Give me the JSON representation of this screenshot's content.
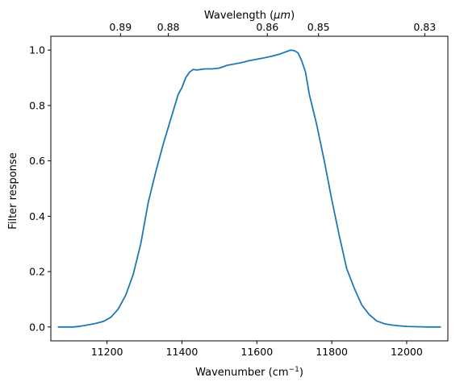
{
  "chart_data": {
    "type": "line",
    "xlabel": "Wavenumber (cm",
    "xlabel_sup": "−1",
    "xlabel_close": ")",
    "ylabel": "Filter response",
    "top_xlabel_prefix": "Wavelength (",
    "top_xlabel_unit": "μm",
    "top_xlabel_suffix": ")",
    "xlim": [
      11050,
      12110
    ],
    "ylim": [
      -0.05,
      1.05
    ],
    "x_ticks": [
      {
        "value": 11200,
        "label": "11200"
      },
      {
        "value": 11400,
        "label": "11400"
      },
      {
        "value": 11600,
        "label": "11600"
      },
      {
        "value": 11800,
        "label": "11800"
      },
      {
        "value": 12000,
        "label": "12000"
      }
    ],
    "y_ticks": [
      {
        "value": 0.0,
        "label": "0.0"
      },
      {
        "value": 0.2,
        "label": "0.2"
      },
      {
        "value": 0.4,
        "label": "0.4"
      },
      {
        "value": 0.6,
        "label": "0.6"
      },
      {
        "value": 0.8,
        "label": "0.8"
      },
      {
        "value": 1.0,
        "label": "1.0"
      }
    ],
    "top_ticks": [
      {
        "value": 0.89,
        "label": "0.89"
      },
      {
        "value": 0.88,
        "label": "0.88"
      },
      {
        "value": 0.86,
        "label": "0.86"
      },
      {
        "value": 0.85,
        "label": "0.85"
      },
      {
        "value": 0.83,
        "label": "0.83"
      }
    ],
    "grid": false,
    "series": [
      {
        "color": "#1f77b4",
        "x": [
          11070,
          11090,
          11110,
          11130,
          11150,
          11170,
          11190,
          11210,
          11230,
          11250,
          11270,
          11290,
          11310,
          11330,
          11350,
          11370,
          11390,
          11400,
          11410,
          11420,
          11430,
          11440,
          11450,
          11460,
          11470,
          11480,
          11500,
          11520,
          11540,
          11560,
          11580,
          11600,
          11620,
          11640,
          11660,
          11680,
          11690,
          11700,
          11710,
          11720,
          11730,
          11740,
          11760,
          11780,
          11800,
          11820,
          11840,
          11860,
          11880,
          11900,
          11920,
          11940,
          11960,
          11980,
          12000,
          12030,
          12060,
          12090
        ],
        "y": [
          0.0,
          0.0,
          0.0,
          0.003,
          0.008,
          0.013,
          0.02,
          0.035,
          0.065,
          0.115,
          0.19,
          0.3,
          0.45,
          0.56,
          0.66,
          0.75,
          0.84,
          0.865,
          0.9,
          0.92,
          0.93,
          0.928,
          0.93,
          0.932,
          0.932,
          0.932,
          0.935,
          0.945,
          0.95,
          0.955,
          0.962,
          0.967,
          0.972,
          0.978,
          0.985,
          0.995,
          1.0,
          0.998,
          0.99,
          0.96,
          0.92,
          0.84,
          0.73,
          0.6,
          0.46,
          0.33,
          0.21,
          0.14,
          0.08,
          0.045,
          0.022,
          0.012,
          0.007,
          0.004,
          0.002,
          0.001,
          0.0,
          0.0
        ]
      }
    ]
  }
}
